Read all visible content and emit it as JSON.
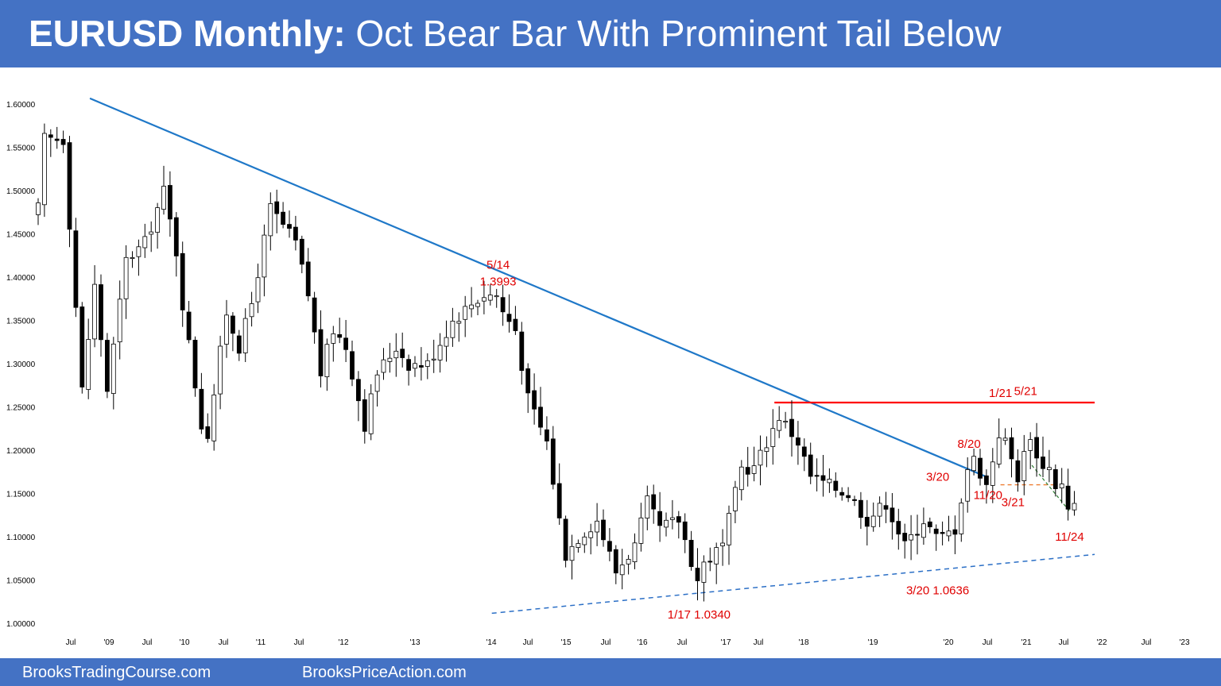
{
  "header": {
    "title_bold": "EURUSD Monthly:",
    "title_rest": " Oct Bear Bar With Prominent Tail Below"
  },
  "footer": {
    "left_link": "BrooksTradingCourse.com",
    "right_link": "BrooksPriceAction.com"
  },
  "colors": {
    "header_bg": "#4472c4",
    "trendline": "#1f78c8",
    "resistance": "#ff0000",
    "annotation": "#e00000",
    "support_dashed": "#2b6fc6",
    "orange_dashed": "#ed7d31",
    "green_dashed": "#2e7d32",
    "bull_candle": "#ffffff",
    "bear_candle": "#000000"
  },
  "chart_data": {
    "type": "candlestick",
    "title": "EURUSD Monthly",
    "ylim": [
      0.995,
      1.61
    ],
    "y_ticks": [
      "1.60000",
      "1.55000",
      "1.50000",
      "1.45000",
      "1.40000",
      "1.35000",
      "1.30000",
      "1.25000",
      "1.20000",
      "1.15000",
      "1.10000",
      "1.05000",
      "1.00000"
    ],
    "x_ticks": [
      "Jul",
      "'09",
      "Jul",
      "'10",
      "Jul",
      "'11",
      "Jul",
      "'12",
      "'13",
      "'14",
      "Jul",
      "'15",
      "Jul",
      "'16",
      "Jul",
      "'17",
      "Jul",
      "'18",
      "'19",
      "'20",
      "Jul",
      "'21",
      "Jul",
      "'22",
      "Jul",
      "'23"
    ],
    "x_range": [
      "2008-03",
      "2023-01"
    ],
    "bar_interval": "monthly",
    "close_path": [
      [
        "2008-03",
        1.48
      ],
      [
        "2008-04",
        1.56
      ],
      [
        "2008-07",
        1.56
      ],
      [
        "2008-10",
        1.27
      ],
      [
        "2008-12",
        1.39
      ],
      [
        "2009-02",
        1.27
      ],
      [
        "2009-05",
        1.42
      ],
      [
        "2009-08",
        1.44
      ],
      [
        "2009-11",
        1.5
      ],
      [
        "2010-01",
        1.43
      ],
      [
        "2010-02",
        1.37
      ],
      [
        "2010-05",
        1.23
      ],
      [
        "2010-06",
        1.22
      ],
      [
        "2010-09",
        1.36
      ],
      [
        "2010-11",
        1.32
      ],
      [
        "2011-01",
        1.37
      ],
      [
        "2011-04",
        1.48
      ],
      [
        "2011-08",
        1.44
      ],
      [
        "2011-10",
        1.38
      ],
      [
        "2011-12",
        1.29
      ],
      [
        "2012-02",
        1.34
      ],
      [
        "2012-04",
        1.32
      ],
      [
        "2012-07",
        1.23
      ],
      [
        "2012-09",
        1.29
      ],
      [
        "2012-12",
        1.32
      ],
      [
        "2013-02",
        1.3
      ],
      [
        "2013-05",
        1.3
      ],
      [
        "2013-09",
        1.35
      ],
      [
        "2013-12",
        1.37
      ],
      [
        "2014-02",
        1.38
      ],
      [
        "2014-04",
        1.38
      ],
      [
        "2014-05",
        1.36
      ],
      [
        "2014-07",
        1.34
      ],
      [
        "2014-09",
        1.26
      ],
      [
        "2014-12",
        1.21
      ],
      [
        "2015-02",
        1.12
      ],
      [
        "2015-03",
        1.08
      ],
      [
        "2015-05",
        1.1
      ],
      [
        "2015-08",
        1.12
      ],
      [
        "2015-11",
        1.06
      ],
      [
        "2016-01",
        1.08
      ],
      [
        "2016-02",
        1.09
      ],
      [
        "2016-04",
        1.14
      ],
      [
        "2016-06",
        1.11
      ],
      [
        "2016-09",
        1.12
      ],
      [
        "2016-12",
        1.05
      ],
      [
        "2017-01",
        1.07
      ],
      [
        "2017-04",
        1.09
      ],
      [
        "2017-07",
        1.18
      ],
      [
        "2017-09",
        1.18
      ],
      [
        "2018-01",
        1.24
      ],
      [
        "2018-02",
        1.23
      ],
      [
        "2018-04",
        1.21
      ],
      [
        "2018-06",
        1.17
      ],
      [
        "2018-09",
        1.16
      ],
      [
        "2018-12",
        1.15
      ],
      [
        "2019-03",
        1.12
      ],
      [
        "2019-06",
        1.14
      ],
      [
        "2019-09",
        1.09
      ],
      [
        "2019-12",
        1.12
      ],
      [
        "2020-02",
        1.1
      ],
      [
        "2020-03",
        1.1
      ],
      [
        "2020-05",
        1.11
      ],
      [
        "2020-07",
        1.18
      ],
      [
        "2020-08",
        1.19
      ],
      [
        "2020-10",
        1.16
      ],
      [
        "2020-11",
        1.19
      ],
      [
        "2020-12",
        1.22
      ],
      [
        "2021-01",
        1.21
      ],
      [
        "2021-03",
        1.17
      ],
      [
        "2021-05",
        1.22
      ],
      [
        "2021-06",
        1.19
      ],
      [
        "2021-08",
        1.18
      ],
      [
        "2021-09",
        1.16
      ],
      [
        "2021-10",
        1.16
      ],
      [
        "2021-11",
        1.13
      ],
      [
        "2021-12",
        1.135
      ]
    ],
    "lines": [
      {
        "name": "bear trendline",
        "style": "solid",
        "points": [
          [
            "2008-12",
            1.607
          ],
          [
            "2020-11",
            1.169
          ]
        ]
      },
      {
        "name": "resistance",
        "style": "solid",
        "points": [
          [
            "2018-01",
            1.2555
          ],
          [
            "2022-04",
            1.2555
          ]
        ]
      },
      {
        "name": "support trendline",
        "style": "dashed",
        "points": [
          [
            "2014-04",
            1.012
          ],
          [
            "2022-04",
            1.08
          ]
        ]
      },
      {
        "name": "3/21 low",
        "style": "dashed",
        "points": [
          [
            "2021-01",
            1.1605
          ],
          [
            "2021-10",
            1.1605
          ]
        ]
      },
      {
        "name": "micro channel",
        "style": "dashed",
        "points": [
          [
            "2021-06",
            1.183
          ],
          [
            "2021-12",
            1.13
          ]
        ]
      }
    ],
    "annotations": [
      {
        "text": "5/14",
        "date": "2014-05",
        "y": 1.41
      },
      {
        "text": "1.3993",
        "date": "2014-05",
        "y": 1.391
      },
      {
        "text": "1/21",
        "date": "2021-01",
        "y": 1.262
      },
      {
        "text": "5/21",
        "date": "2021-05",
        "y": 1.264
      },
      {
        "text": "8/20",
        "date": "2020-08",
        "y": 1.203
      },
      {
        "text": "3/20",
        "date": "2020-03",
        "y": 1.165
      },
      {
        "text": "11/20",
        "date": "2020-11",
        "y": 1.144
      },
      {
        "text": "3/21",
        "date": "2021-03",
        "y": 1.136
      },
      {
        "text": "11/24",
        "date": "2021-12",
        "y": 1.096
      },
      {
        "text": "3/20 1.0636",
        "date": "2020-03",
        "y": 1.034
      },
      {
        "text": "1/17 1.0340",
        "date": "2017-01",
        "y": 1.006
      }
    ]
  }
}
